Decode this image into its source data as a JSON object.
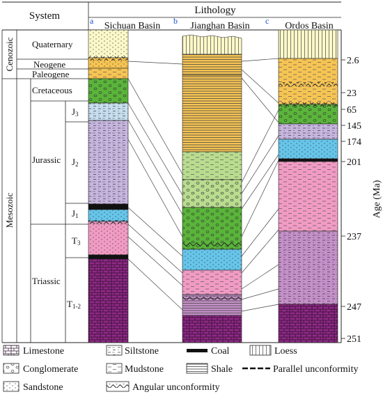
{
  "header": {
    "system": "System",
    "lithology": "Lithology",
    "panel_letters": [
      "a",
      "b",
      "c"
    ],
    "basins": [
      "Sichuan Basin",
      "Jianghan Basin",
      "Ordos Basin"
    ]
  },
  "eras": {
    "cenozoic": "Cenozoic",
    "mesozoic": "Mesozoic"
  },
  "periods": {
    "quaternary": "Quaternary",
    "neogene": "Neogene",
    "paleogene": "Paleogene",
    "cretaceous": "Cretaceous",
    "jurassic": "Jurassic",
    "triassic": "Triassic"
  },
  "epochs": {
    "j3": {
      "base": "J",
      "sub": "3"
    },
    "j2": {
      "base": "J",
      "sub": "2"
    },
    "j1": {
      "base": "J",
      "sub": "1"
    },
    "t3": {
      "base": "T",
      "sub": "3"
    },
    "t12": {
      "base": "T",
      "sub": "1-2"
    }
  },
  "age_axis": {
    "label": "Age (Ma)",
    "ticks": [
      "2.6",
      "23",
      "65",
      "145",
      "174",
      "201",
      "237",
      "247",
      "251"
    ]
  },
  "legend": {
    "limestone": "Limestone",
    "siltstone": "Siltstone",
    "coal": "Coal",
    "loess": "Loess",
    "conglomerate": "Conglomerate",
    "mudstone": "Mudstone",
    "shale": "Shale",
    "parallel": "Parallel unconformity",
    "sandstone": "Sandstone",
    "angular": "Angular unconformity"
  },
  "colors": {
    "cream": "#fbf8c8",
    "orange": "#f6c453",
    "green": "#5ab53a",
    "light_green": "#b9dd8f",
    "blue": "#66c5ea",
    "lavender": "#c6b5de",
    "pink": "#f19bc4",
    "magenta": "#8e2a86",
    "mauve": "#c590c9"
  }
}
